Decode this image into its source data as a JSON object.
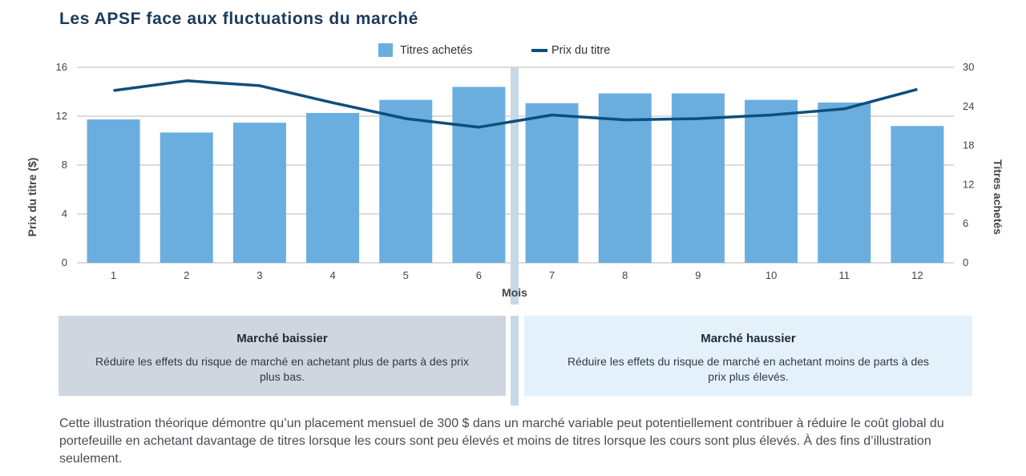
{
  "chart_data": {
    "type": "bar",
    "title": "Les APSF face aux fluctuations du marché",
    "categories": [
      "1",
      "2",
      "3",
      "4",
      "5",
      "6",
      "7",
      "8",
      "9",
      "10",
      "11",
      "12"
    ],
    "series": [
      {
        "name": "Titres achetés",
        "type": "bar",
        "axis": "right",
        "color": "#6aaee0",
        "values": [
          22,
          20,
          21.5,
          23,
          25,
          27,
          24.5,
          26,
          26,
          25,
          24.6,
          21
        ]
      },
      {
        "name": "Prix du titre",
        "type": "line",
        "axis": "left",
        "color": "#0d4f7a",
        "values": [
          14.1,
          14.9,
          14.5,
          13.1,
          11.8,
          11.1,
          12.1,
          11.7,
          11.8,
          12.1,
          12.6,
          14.2
        ]
      }
    ],
    "xlabel": "Mois",
    "ylabel": "Prix du titre ($)",
    "y2label": "Titres achetés",
    "ylim": [
      0,
      16
    ],
    "y2lim": [
      0,
      30
    ],
    "yticks": [
      "0",
      "4",
      "8",
      "12",
      "16"
    ],
    "y2ticks": [
      "0",
      "6",
      "12",
      "18",
      "24",
      "30"
    ],
    "grid": true,
    "legend_position": "top-center"
  },
  "boxes": {
    "left": {
      "title": "Marché baissier",
      "text": "Réduire les effets du risque de marché en achetant plus de parts à des prix plus bas."
    },
    "right": {
      "title": "Marché haussier",
      "text": "Réduire les effets du risque de marché en achetant moins de parts à des prix plus élevés."
    }
  },
  "footnote": "Cette illustration théorique démontre qu’un placement mensuel de 300 $ dans un marché variable peut potentiellement contribuer à réduire le coût global du portefeuille en achetant davantage de titres lorsque les cours sont peu élevés et moins de titres lorsque les cours sont plus élevés. À des fins d’illustration seulement.",
  "colors": {
    "title": "#1b3a5c",
    "divider": "#c6d8e6",
    "grid": "#b9b9b9"
  }
}
